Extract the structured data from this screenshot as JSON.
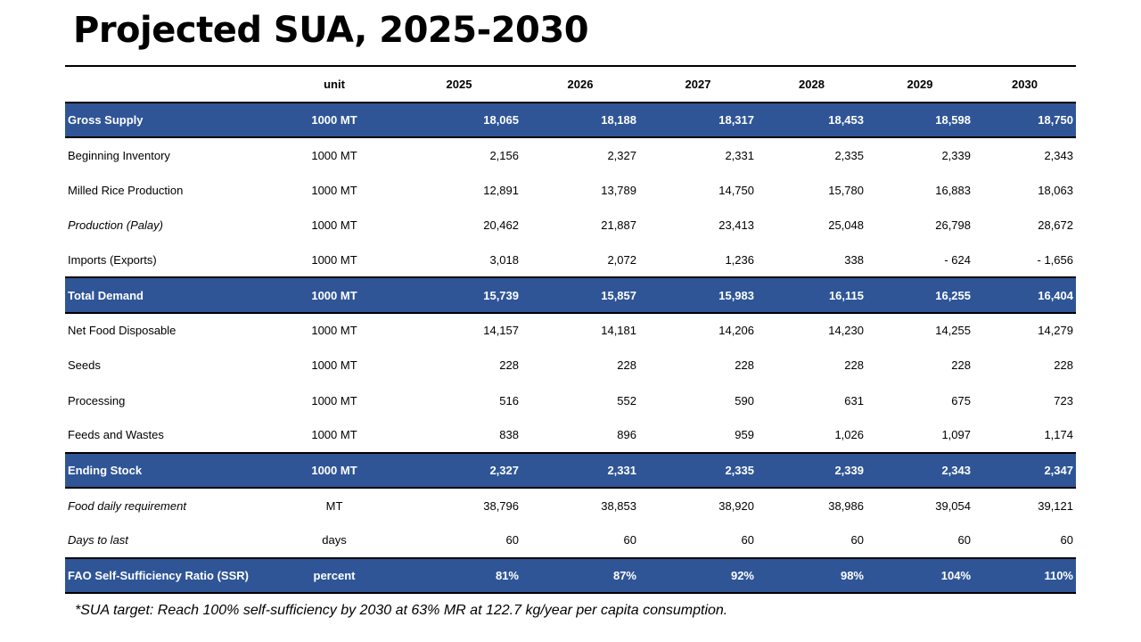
{
  "title": "Projected SUA, 2025-2030",
  "header": {
    "unit": "unit",
    "years": [
      "2025",
      "2026",
      "2027",
      "2028",
      "2029",
      "2030"
    ]
  },
  "rows": [
    {
      "label": "Gross Supply",
      "unit": "1000 MT",
      "values": [
        "18,065",
        "18,188",
        "18,317",
        "18,453",
        "18,598",
        "18,750"
      ],
      "style": "section"
    },
    {
      "label": "Beginning Inventory",
      "unit": "1000 MT",
      "values": [
        "2,156",
        "2,327",
        "2,331",
        "2,335",
        "2,339",
        "2,343"
      ],
      "style": "normal"
    },
    {
      "label": "Milled Rice Production",
      "unit": "1000 MT",
      "values": [
        "12,891",
        "13,789",
        "14,750",
        "15,780",
        "16,883",
        "18,063"
      ],
      "style": "normal"
    },
    {
      "label": "Production (Palay)",
      "unit": "1000 MT",
      "values": [
        "20,462",
        "21,887",
        "23,413",
        "25,048",
        "26,798",
        "28,672"
      ],
      "style": "italic"
    },
    {
      "label": "Imports (Exports)",
      "unit": "1000 MT",
      "values": [
        "3,018",
        "2,072",
        "1,236",
        "338",
        "- 624",
        "- 1,656"
      ],
      "style": "normal"
    },
    {
      "label": "Total Demand",
      "unit": "1000 MT",
      "values": [
        "15,739",
        "15,857",
        "15,983",
        "16,115",
        "16,255",
        "16,404"
      ],
      "style": "section"
    },
    {
      "label": "Net Food Disposable",
      "unit": "1000 MT",
      "values": [
        "14,157",
        "14,181",
        "14,206",
        "14,230",
        "14,255",
        "14,279"
      ],
      "style": "normal"
    },
    {
      "label": "Seeds",
      "unit": "1000 MT",
      "values": [
        "228",
        "228",
        "228",
        "228",
        "228",
        "228"
      ],
      "style": "normal"
    },
    {
      "label": "Processing",
      "unit": "1000 MT",
      "values": [
        "516",
        "552",
        "590",
        "631",
        "675",
        "723"
      ],
      "style": "normal"
    },
    {
      "label": "Feeds and Wastes",
      "unit": "1000 MT",
      "values": [
        "838",
        "896",
        "959",
        "1,026",
        "1,097",
        "1,174"
      ],
      "style": "normal"
    },
    {
      "label": "Ending Stock",
      "unit": "1000 MT",
      "values": [
        "2,327",
        "2,331",
        "2,335",
        "2,339",
        "2,343",
        "2,347"
      ],
      "style": "section"
    },
    {
      "label": "Food daily requirement",
      "unit": "MT",
      "values": [
        "38,796",
        "38,853",
        "38,920",
        "38,986",
        "39,054",
        "39,121"
      ],
      "style": "italic"
    },
    {
      "label": "Days to last",
      "unit": "days",
      "values": [
        "60",
        "60",
        "60",
        "60",
        "60",
        "60"
      ],
      "style": "italic"
    },
    {
      "label": "FAO Self-Sufficiency Ratio (SSR)",
      "unit": "percent",
      "values": [
        "81%",
        "87%",
        "92%",
        "98%",
        "104%",
        "110%"
      ],
      "style": "section"
    }
  ],
  "colors": {
    "section_fill": "#2f5597",
    "section_text": "#ffffff"
  },
  "footnote": "*SUA target: Reach 100% self-sufficiency by 2030 at 63% MR at 122.7 kg/year per capita consumption."
}
